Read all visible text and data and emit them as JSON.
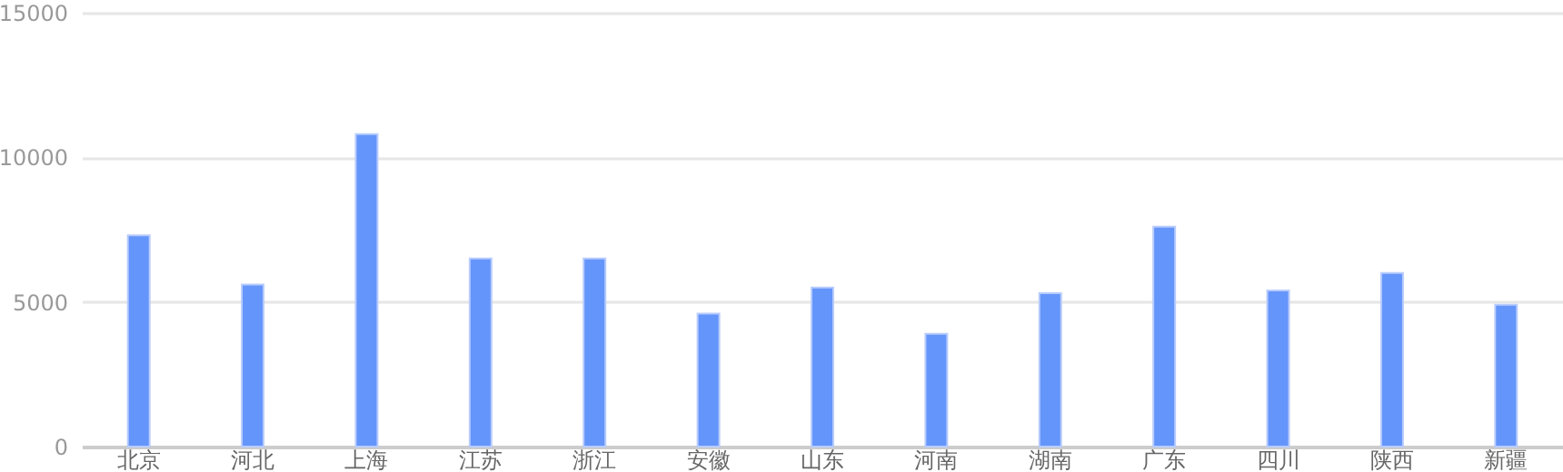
{
  "chart_data": {
    "type": "bar",
    "categories": [
      "北京",
      "河北",
      "上海",
      "江苏",
      "浙江",
      "安徽",
      "山东",
      "河南",
      "湖南",
      "广东",
      "四川",
      "陕西",
      "新疆"
    ],
    "values": [
      7300,
      5600,
      10800,
      6500,
      6500,
      4600,
      5500,
      3900,
      5300,
      7600,
      5400,
      6000,
      4900
    ],
    "color": "#6495fa",
    "ylim": [
      0,
      15000
    ],
    "yticks": [
      0,
      5000,
      10000,
      15000
    ],
    "grid": "y"
  }
}
